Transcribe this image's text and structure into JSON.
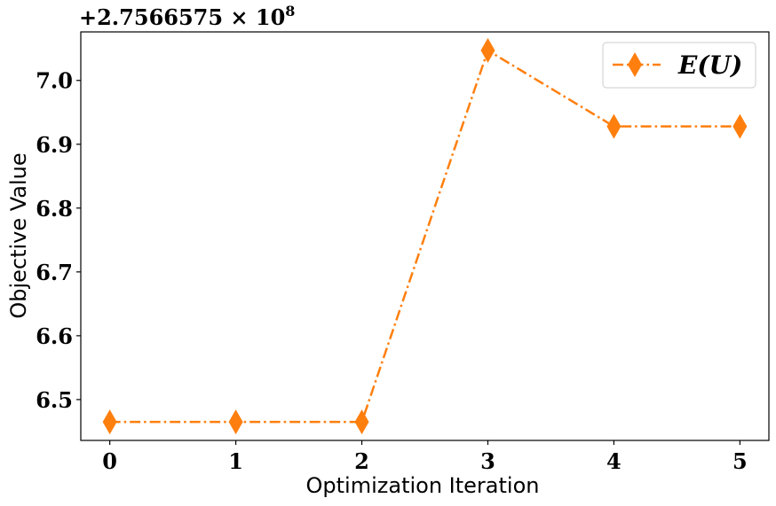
{
  "chart_data": {
    "type": "line",
    "x": [
      0,
      1,
      2,
      3,
      4,
      5
    ],
    "series": [
      {
        "name": "E(U)",
        "values": [
          6.465,
          6.465,
          6.465,
          7.047,
          6.928,
          6.928
        ],
        "color": "#ff7f0e",
        "marker": "diamond",
        "linestyle": "dashdot"
      }
    ],
    "xlabel": "Optimization Iteration",
    "ylabel": "Objective Value",
    "offset_text": "+2.7566575 × 10",
    "offset_exponent": "8",
    "xticks": [
      "0",
      "1",
      "2",
      "3",
      "4",
      "5"
    ],
    "yticks": [
      "6.5",
      "6.6",
      "6.7",
      "6.8",
      "6.9",
      "7.0"
    ],
    "ytick_values": [
      6.5,
      6.6,
      6.7,
      6.8,
      6.9,
      7.0
    ],
    "xlim": [
      -0.23,
      5.23
    ],
    "ylim": [
      6.436,
      7.076
    ],
    "grid": false,
    "legend_position": "top-right"
  }
}
